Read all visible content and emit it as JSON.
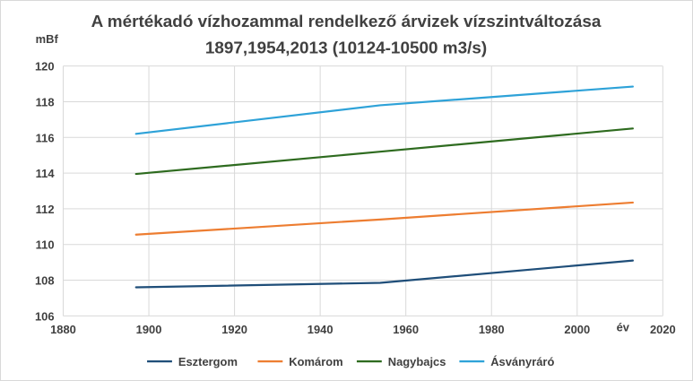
{
  "chart_data": {
    "type": "line",
    "title_line1": "A mértékadó vízhozammal rendelkező árvizek vízszintváltozása",
    "title_line2": "1897,1954,2013 (10124-10500 m3/s)",
    "xlabel": "év",
    "ylabel": "mBf",
    "xlim": [
      1880,
      2020
    ],
    "ylim": [
      106,
      120
    ],
    "x_ticks": [
      1880,
      1900,
      1920,
      1940,
      1960,
      1980,
      2000,
      2020
    ],
    "y_ticks": [
      106,
      108,
      110,
      112,
      114,
      116,
      118,
      120
    ],
    "grid": true,
    "legend_position": "bottom",
    "x": [
      1897,
      1954,
      2013
    ],
    "series": [
      {
        "name": "Esztergom",
        "color": "#1f4e79",
        "values": [
          107.6,
          107.85,
          109.1
        ]
      },
      {
        "name": "Komárom",
        "color": "#ed7d31",
        "values": [
          110.55,
          111.4,
          112.35
        ]
      },
      {
        "name": "Nagybajcs",
        "color": "#2e6b1f",
        "values": [
          113.95,
          115.2,
          116.5
        ]
      },
      {
        "name": "Ásványráró",
        "color": "#2ea2d8",
        "values": [
          116.2,
          117.8,
          118.85
        ]
      }
    ]
  }
}
